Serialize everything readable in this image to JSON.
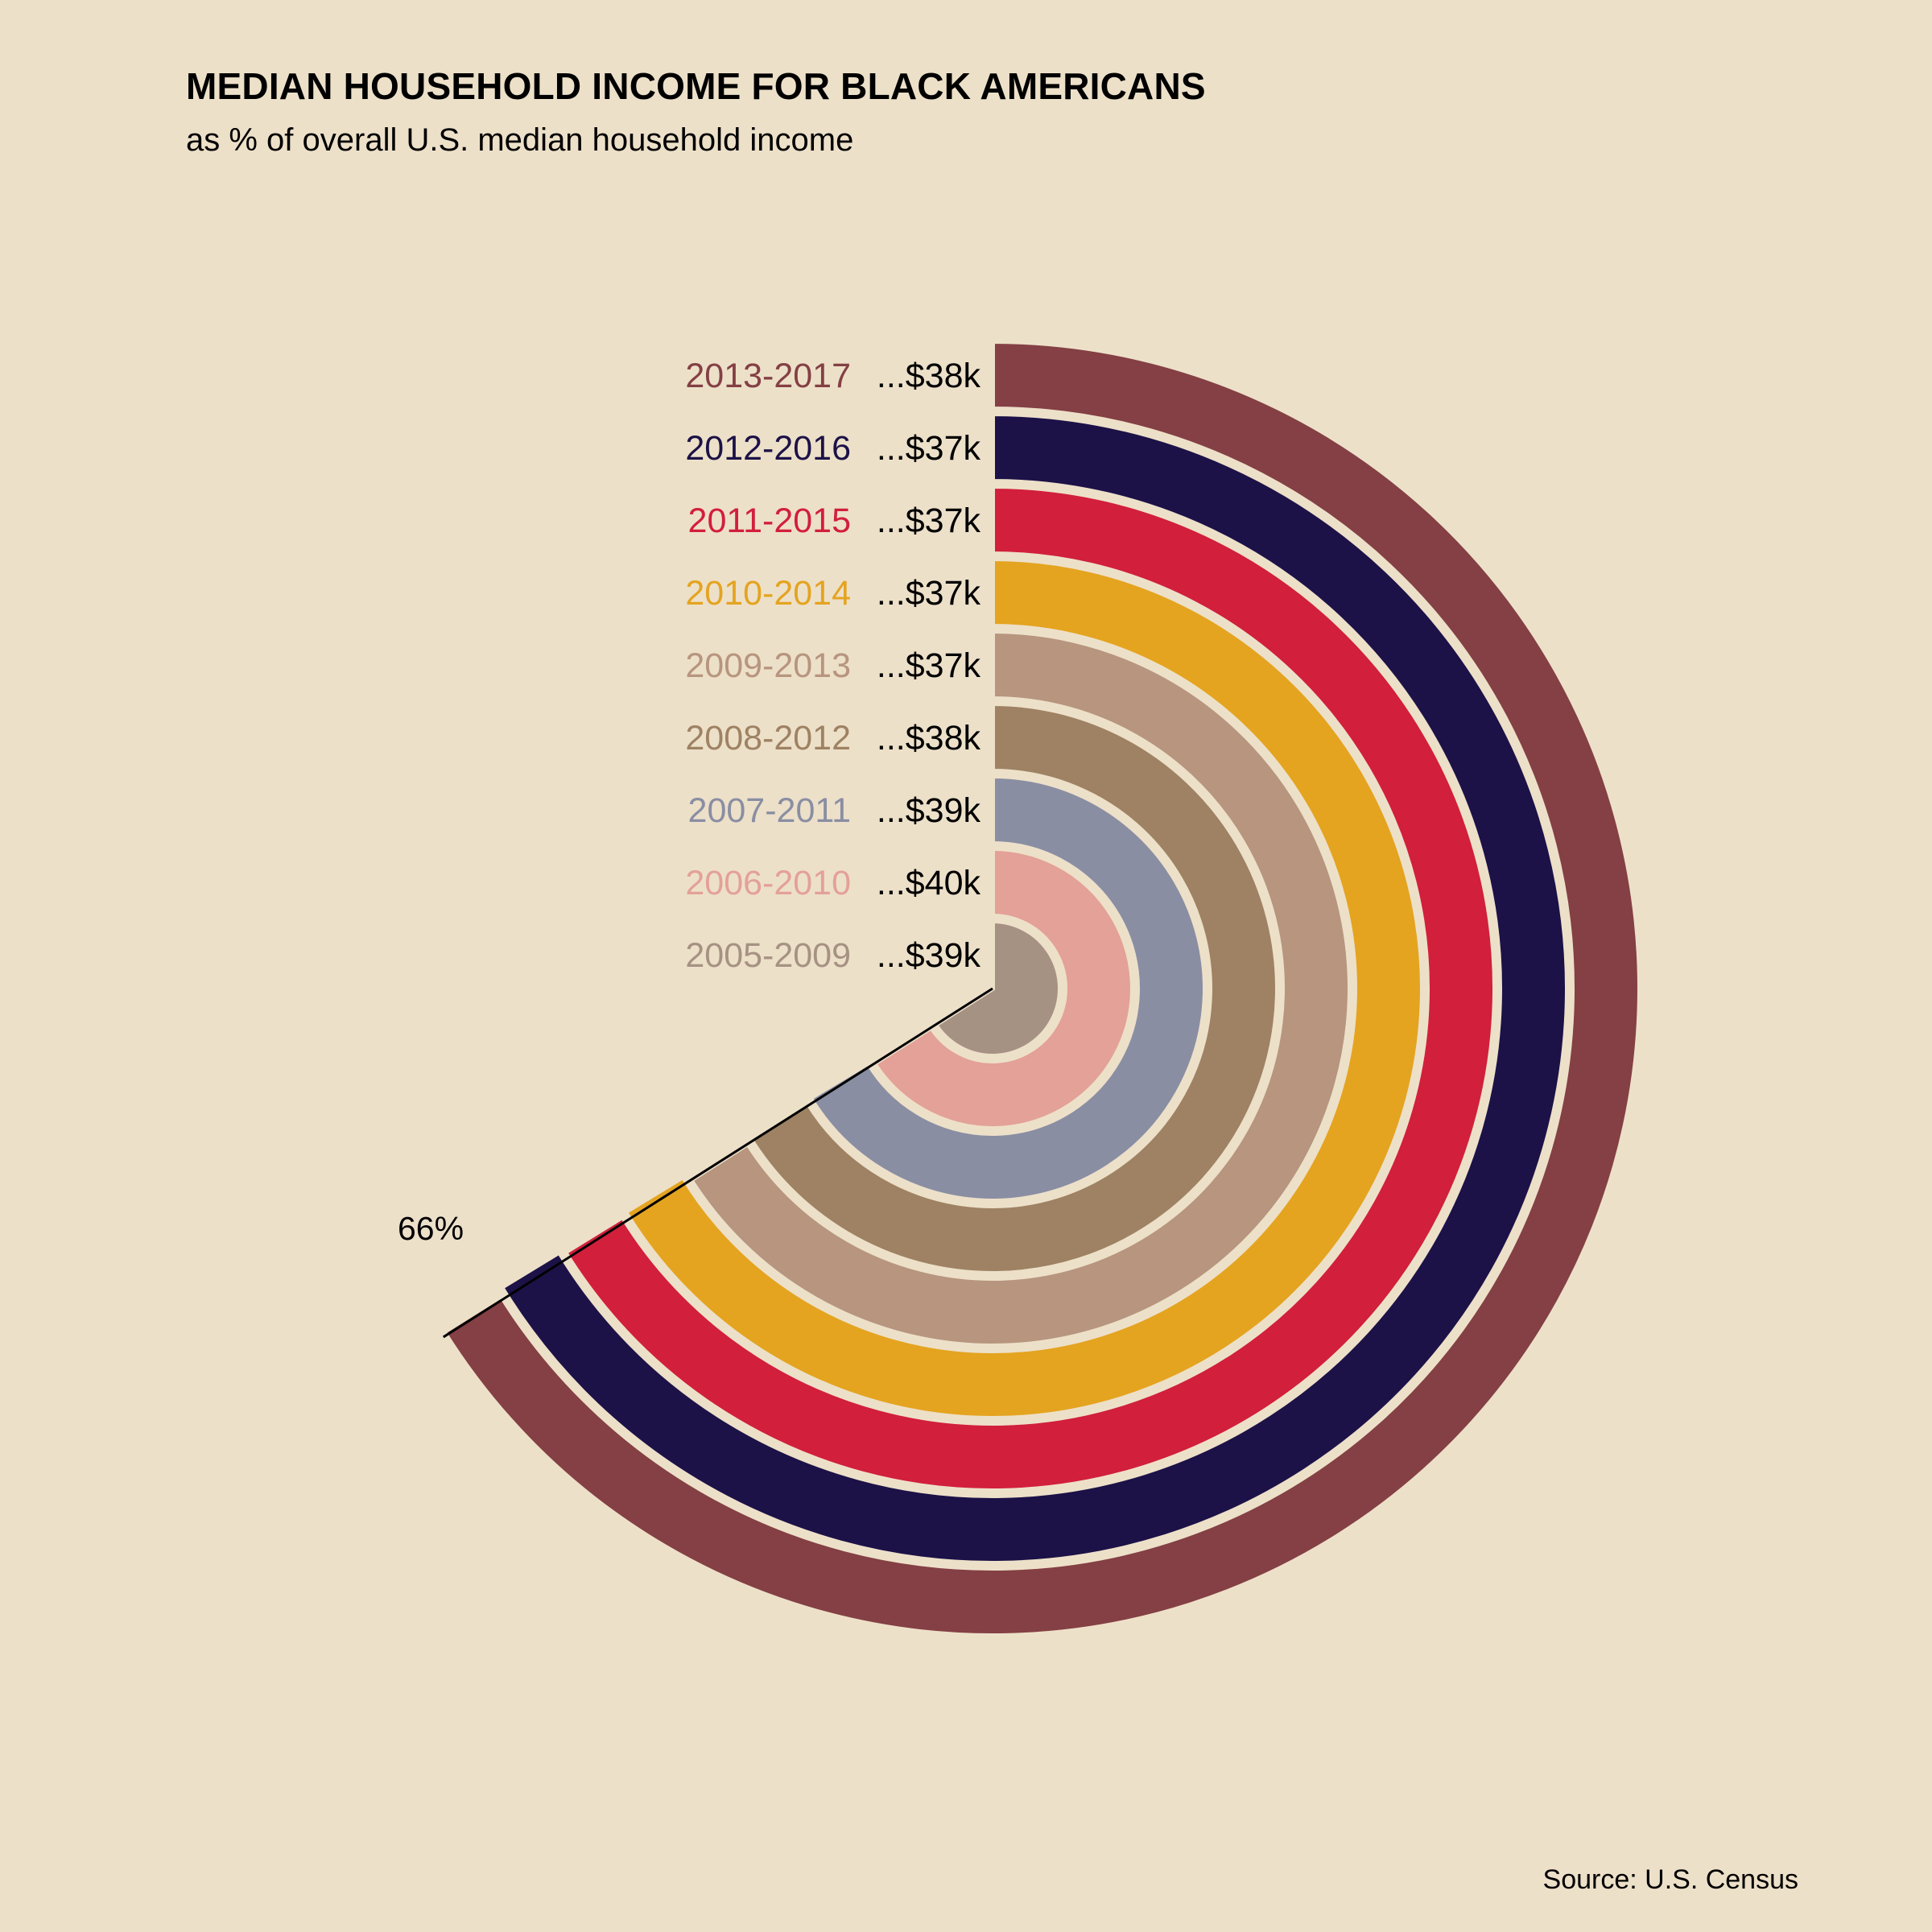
{
  "title": "MEDIAN HOUSEHOLD INCOME FOR BLACK AMERICANS",
  "subtitle": "as % of overall U.S. median household income",
  "source": "Source: U.S. Census",
  "background": "#ede0c9",
  "chart_data": {
    "type": "radial-bar",
    "title": "MEDIAN HOUSEHOLD INCOME FOR BLACK AMERICANS",
    "subtitle": "as % of overall U.S. median household income",
    "reference_line": {
      "value": 66,
      "label": "66%"
    },
    "series": [
      {
        "period": "2005-2009",
        "value_label": "...$39k",
        "percent": 66.0,
        "color": "#a69283"
      },
      {
        "period": "2006-2010",
        "value_label": "...$40k",
        "percent": 66.0,
        "color": "#e3a198"
      },
      {
        "period": "2007-2011",
        "value_label": "...$39k",
        "percent": 66.4,
        "color": "#8a8ea3"
      },
      {
        "period": "2008-2012",
        "value_label": "...$38k",
        "percent": 66.2,
        "color": "#9e8263"
      },
      {
        "period": "2009-2013",
        "value_label": "...$37k",
        "percent": 66.0,
        "color": "#b7957e"
      },
      {
        "period": "2010-2014",
        "value_label": "...$37k",
        "percent": 66.3,
        "color": "#e4a420"
      },
      {
        "period": "2011-2015",
        "value_label": "...$37k",
        "percent": 66.2,
        "color": "#d11f3c"
      },
      {
        "period": "2012-2016",
        "value_label": "...$37k",
        "percent": 66.3,
        "color": "#1c1247"
      },
      {
        "period": "2013-2017",
        "value_label": "...$38k",
        "percent": 66.1,
        "color": "#844044"
      }
    ]
  }
}
